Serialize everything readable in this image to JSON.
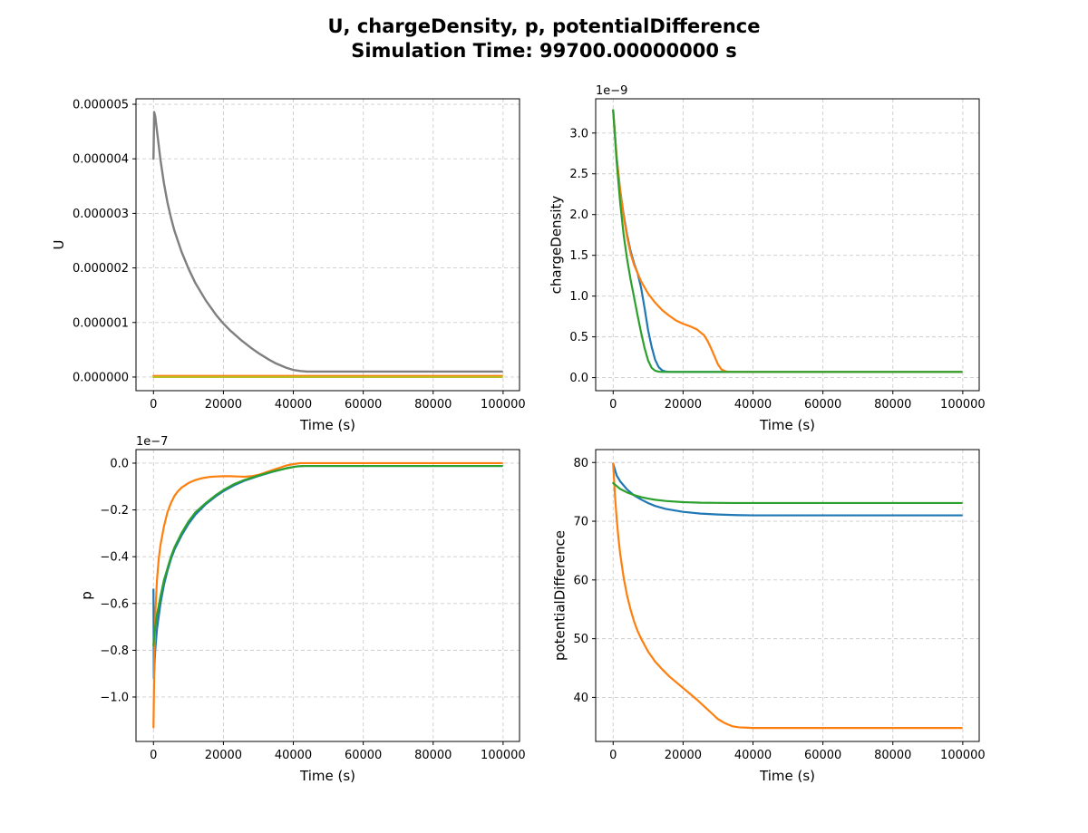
{
  "figure": {
    "title_line1": "U, chargeDensity, p, potentialDifference",
    "title_line2": "Simulation Time: 99700.00000000 s"
  },
  "colors": {
    "blue": "#1f77b4",
    "orange": "#ff7f0e",
    "green": "#2ca02c",
    "gray": "#7f7f7f",
    "olive": "#bcbd22",
    "grid": "#cccccc"
  },
  "chart_data": [
    {
      "type": "line",
      "xlabel": "Time (s)",
      "ylabel": "U",
      "offset_text": "",
      "xlim": [
        -5000,
        104700
      ],
      "ylim": [
        -2.5e-07,
        5.1e-06
      ],
      "xticks": [
        0,
        20000,
        40000,
        60000,
        80000,
        100000
      ],
      "xtick_labels": [
        "0",
        "20000",
        "40000",
        "60000",
        "80000",
        "100000"
      ],
      "yticks": [
        0,
        1e-06,
        2e-06,
        3e-06,
        4e-06,
        5e-06
      ],
      "ytick_labels": [
        "0.000000",
        "0.000001",
        "0.000002",
        "0.000003",
        "0.000004",
        "0.000005"
      ],
      "grid": true,
      "series": [
        {
          "color": "#ff7f0e",
          "width": 2.2,
          "x": [
            0,
            99700
          ],
          "y": [
            2e-08,
            2e-08
          ]
        },
        {
          "color": "#bcbd22",
          "width": 2.2,
          "x": [
            0,
            99700
          ],
          "y": [
            0.0,
            0.0
          ]
        },
        {
          "color": "#7f7f7f",
          "width": 2.4,
          "x": [
            0,
            200,
            500,
            1000,
            2000,
            3000,
            4000,
            5000,
            6000,
            8000,
            10000,
            12000,
            15000,
            18000,
            20000,
            22000,
            25000,
            28000,
            30000,
            33000,
            35000,
            38000,
            40000,
            42000,
            44000,
            50000,
            60000,
            70000,
            80000,
            90000,
            99700
          ],
          "y": [
            4e-06,
            4.857e-06,
            4.78e-06,
            4.51e-06,
            3.98e-06,
            3.55e-06,
            3.2e-06,
            2.92e-06,
            2.68e-06,
            2.3e-06,
            1.99e-06,
            1.72e-06,
            1.4e-06,
            1.13e-06,
            9.8e-07,
            8.5e-07,
            6.8e-07,
            5.3e-07,
            4.4e-07,
            3.2e-07,
            2.5e-07,
            1.7e-07,
            1.3e-07,
            1.1e-07,
            1e-07,
            1e-07,
            1e-07,
            1e-07,
            1e-07,
            1e-07,
            1e-07
          ]
        }
      ]
    },
    {
      "type": "line",
      "xlabel": "Time (s)",
      "ylabel": "chargeDensity",
      "offset_text": "1e−9",
      "xlim": [
        -5000,
        104700
      ],
      "ylim": [
        -0.16,
        3.42
      ],
      "xticks": [
        0,
        20000,
        40000,
        60000,
        80000,
        100000
      ],
      "xtick_labels": [
        "0",
        "20000",
        "40000",
        "60000",
        "80000",
        "100000"
      ],
      "yticks": [
        0,
        0.5,
        1.0,
        1.5,
        2.0,
        2.5,
        3.0
      ],
      "ytick_labels": [
        "0.0",
        "0.5",
        "1.0",
        "1.5",
        "2.0",
        "2.5",
        "3.0"
      ],
      "grid": true,
      "series": [
        {
          "color": "#1f77b4",
          "width": 2.2,
          "x": [
            0,
            1000,
            2000,
            3000,
            4000,
            5000,
            6000,
            7000,
            8000,
            9000,
            10000,
            11000,
            12000,
            13000,
            14000,
            15000,
            16000,
            18000,
            20000,
            99700
          ],
          "y": [
            3.28,
            2.7,
            2.3,
            2.0,
            1.75,
            1.55,
            1.4,
            1.28,
            1.1,
            0.85,
            0.58,
            0.38,
            0.22,
            0.13,
            0.09,
            0.075,
            0.07,
            0.07,
            0.07,
            0.07
          ]
        },
        {
          "color": "#ff7f0e",
          "width": 2.2,
          "x": [
            0,
            1000,
            2000,
            3000,
            4000,
            5000,
            6000,
            8000,
            10000,
            12000,
            14000,
            16000,
            18000,
            20000,
            22000,
            24000,
            26000,
            27000,
            28000,
            29000,
            30000,
            31000,
            32000,
            33000,
            35000,
            99700
          ],
          "y": [
            3.28,
            2.7,
            2.3,
            1.98,
            1.72,
            1.52,
            1.38,
            1.18,
            1.03,
            0.92,
            0.83,
            0.76,
            0.7,
            0.66,
            0.63,
            0.59,
            0.52,
            0.45,
            0.36,
            0.26,
            0.16,
            0.1,
            0.08,
            0.07,
            0.07,
            0.07
          ]
        },
        {
          "color": "#2ca02c",
          "width": 2.2,
          "x": [
            0,
            1000,
            2000,
            3000,
            4000,
            5000,
            6000,
            7000,
            8000,
            9000,
            10000,
            11000,
            12000,
            13000,
            14000,
            16000,
            99700
          ],
          "y": [
            3.28,
            2.65,
            2.15,
            1.75,
            1.45,
            1.2,
            0.98,
            0.76,
            0.55,
            0.36,
            0.21,
            0.12,
            0.085,
            0.073,
            0.07,
            0.07,
            0.07
          ]
        }
      ]
    },
    {
      "type": "line",
      "xlabel": "Time (s)",
      "ylabel": "p",
      "offset_text": "1e−7",
      "xlim": [
        -5000,
        104700
      ],
      "ylim": [
        -1.19,
        0.058
      ],
      "xticks": [
        0,
        20000,
        40000,
        60000,
        80000,
        100000
      ],
      "xtick_labels": [
        "0",
        "20000",
        "40000",
        "60000",
        "80000",
        "100000"
      ],
      "yticks": [
        -1.0,
        -0.8,
        -0.6,
        -0.4,
        -0.2,
        0.0
      ],
      "ytick_labels": [
        "−1.0",
        "−0.8",
        "−0.6",
        "−0.4",
        "−0.2",
        "0.0"
      ],
      "grid": true,
      "series": [
        {
          "color": "#1f77b4",
          "width": 2.2,
          "x": [
            0,
            100,
            300,
            500,
            1000,
            2000,
            3000,
            4000,
            5000,
            6000,
            8000,
            10000,
            12000,
            15000,
            18000,
            20000,
            23000,
            26000,
            30000,
            34000,
            38000,
            41000,
            43000,
            50000,
            60000,
            70000,
            80000,
            90000,
            99700
          ],
          "y": [
            -0.54,
            -0.92,
            -0.86,
            -0.8,
            -0.71,
            -0.6,
            -0.52,
            -0.46,
            -0.41,
            -0.37,
            -0.31,
            -0.26,
            -0.22,
            -0.175,
            -0.14,
            -0.12,
            -0.095,
            -0.075,
            -0.055,
            -0.037,
            -0.022,
            -0.014,
            -0.012,
            -0.012,
            -0.012,
            -0.012,
            -0.012,
            -0.012,
            -0.012
          ]
        },
        {
          "color": "#ff7f0e",
          "width": 2.2,
          "x": [
            0,
            300,
            600,
            1000,
            1500,
            2000,
            3000,
            4000,
            5000,
            6000,
            7000,
            8000,
            10000,
            12000,
            14000,
            16000,
            18000,
            20000,
            22000,
            24000,
            26000,
            28000,
            30000,
            32000,
            34000,
            36000,
            38000,
            40000,
            42000,
            45000,
            60000,
            80000,
            99700
          ],
          "y": [
            -1.13,
            -0.8,
            -0.62,
            -0.5,
            -0.41,
            -0.35,
            -0.27,
            -0.21,
            -0.17,
            -0.14,
            -0.12,
            -0.105,
            -0.085,
            -0.072,
            -0.064,
            -0.059,
            -0.057,
            -0.056,
            -0.056,
            -0.057,
            -0.058,
            -0.056,
            -0.05,
            -0.04,
            -0.03,
            -0.02,
            -0.01,
            -0.004,
            0.0,
            0.0,
            0.0,
            0.0,
            0.0
          ]
        },
        {
          "color": "#2ca02c",
          "width": 2.2,
          "x": [
            0,
            200,
            500,
            1000,
            2000,
            3000,
            4000,
            5000,
            6000,
            8000,
            10000,
            12000,
            15000,
            18000,
            20000,
            23000,
            26000,
            30000,
            34000,
            38000,
            41000,
            43000,
            50000,
            60000,
            70000,
            80000,
            90000,
            99700
          ],
          "y": [
            -0.78,
            -0.74,
            -0.7,
            -0.65,
            -0.57,
            -0.5,
            -0.45,
            -0.4,
            -0.36,
            -0.3,
            -0.25,
            -0.21,
            -0.17,
            -0.135,
            -0.115,
            -0.09,
            -0.072,
            -0.053,
            -0.036,
            -0.022,
            -0.014,
            -0.012,
            -0.012,
            -0.012,
            -0.012,
            -0.012,
            -0.012,
            -0.012
          ]
        }
      ]
    },
    {
      "type": "line",
      "xlabel": "Time (s)",
      "ylabel": "potentialDifference",
      "offset_text": "",
      "xlim": [
        -5000,
        104700
      ],
      "ylim": [
        32.5,
        82.2
      ],
      "xticks": [
        0,
        20000,
        40000,
        60000,
        80000,
        100000
      ],
      "xtick_labels": [
        "0",
        "20000",
        "40000",
        "60000",
        "80000",
        "100000"
      ],
      "yticks": [
        40,
        50,
        60,
        70,
        80
      ],
      "ytick_labels": [
        "40",
        "50",
        "60",
        "70",
        "80"
      ],
      "grid": true,
      "series": [
        {
          "color": "#1f77b4",
          "width": 2.2,
          "x": [
            0,
            1000,
            2000,
            4000,
            6000,
            8000,
            10000,
            12000,
            15000,
            20000,
            25000,
            30000,
            35000,
            40000,
            45000,
            60000,
            80000,
            99700
          ],
          "y": [
            79.8,
            77.8,
            76.8,
            75.4,
            74.4,
            73.7,
            73.1,
            72.6,
            72.1,
            71.6,
            71.3,
            71.15,
            71.05,
            71.0,
            71.0,
            71.0,
            71.0,
            71.0
          ]
        },
        {
          "color": "#ff7f0e",
          "width": 2.2,
          "x": [
            0,
            500,
            1000,
            1500,
            2000,
            3000,
            4000,
            5000,
            6000,
            7000,
            8000,
            10000,
            12000,
            14000,
            16000,
            18000,
            20000,
            22000,
            24000,
            26000,
            28000,
            30000,
            32000,
            34000,
            36000,
            38000,
            40000,
            45000,
            60000,
            80000,
            99700
          ],
          "y": [
            79.8,
            74.5,
            70.5,
            67.2,
            64.5,
            60.4,
            57.3,
            54.9,
            52.9,
            51.3,
            50.0,
            47.8,
            46.1,
            44.8,
            43.6,
            42.6,
            41.6,
            40.6,
            39.6,
            38.5,
            37.4,
            36.3,
            35.6,
            35.1,
            34.9,
            34.85,
            34.8,
            34.8,
            34.8,
            34.8,
            34.8
          ]
        },
        {
          "color": "#2ca02c",
          "width": 2.2,
          "x": [
            0,
            2000,
            4000,
            6000,
            8000,
            10000,
            12000,
            15000,
            20000,
            25000,
            30000,
            35000,
            40000,
            50000,
            60000,
            80000,
            99700
          ],
          "y": [
            76.5,
            75.5,
            74.9,
            74.45,
            74.1,
            73.85,
            73.65,
            73.45,
            73.25,
            73.15,
            73.12,
            73.1,
            73.1,
            73.1,
            73.1,
            73.1,
            73.1
          ]
        }
      ]
    }
  ]
}
